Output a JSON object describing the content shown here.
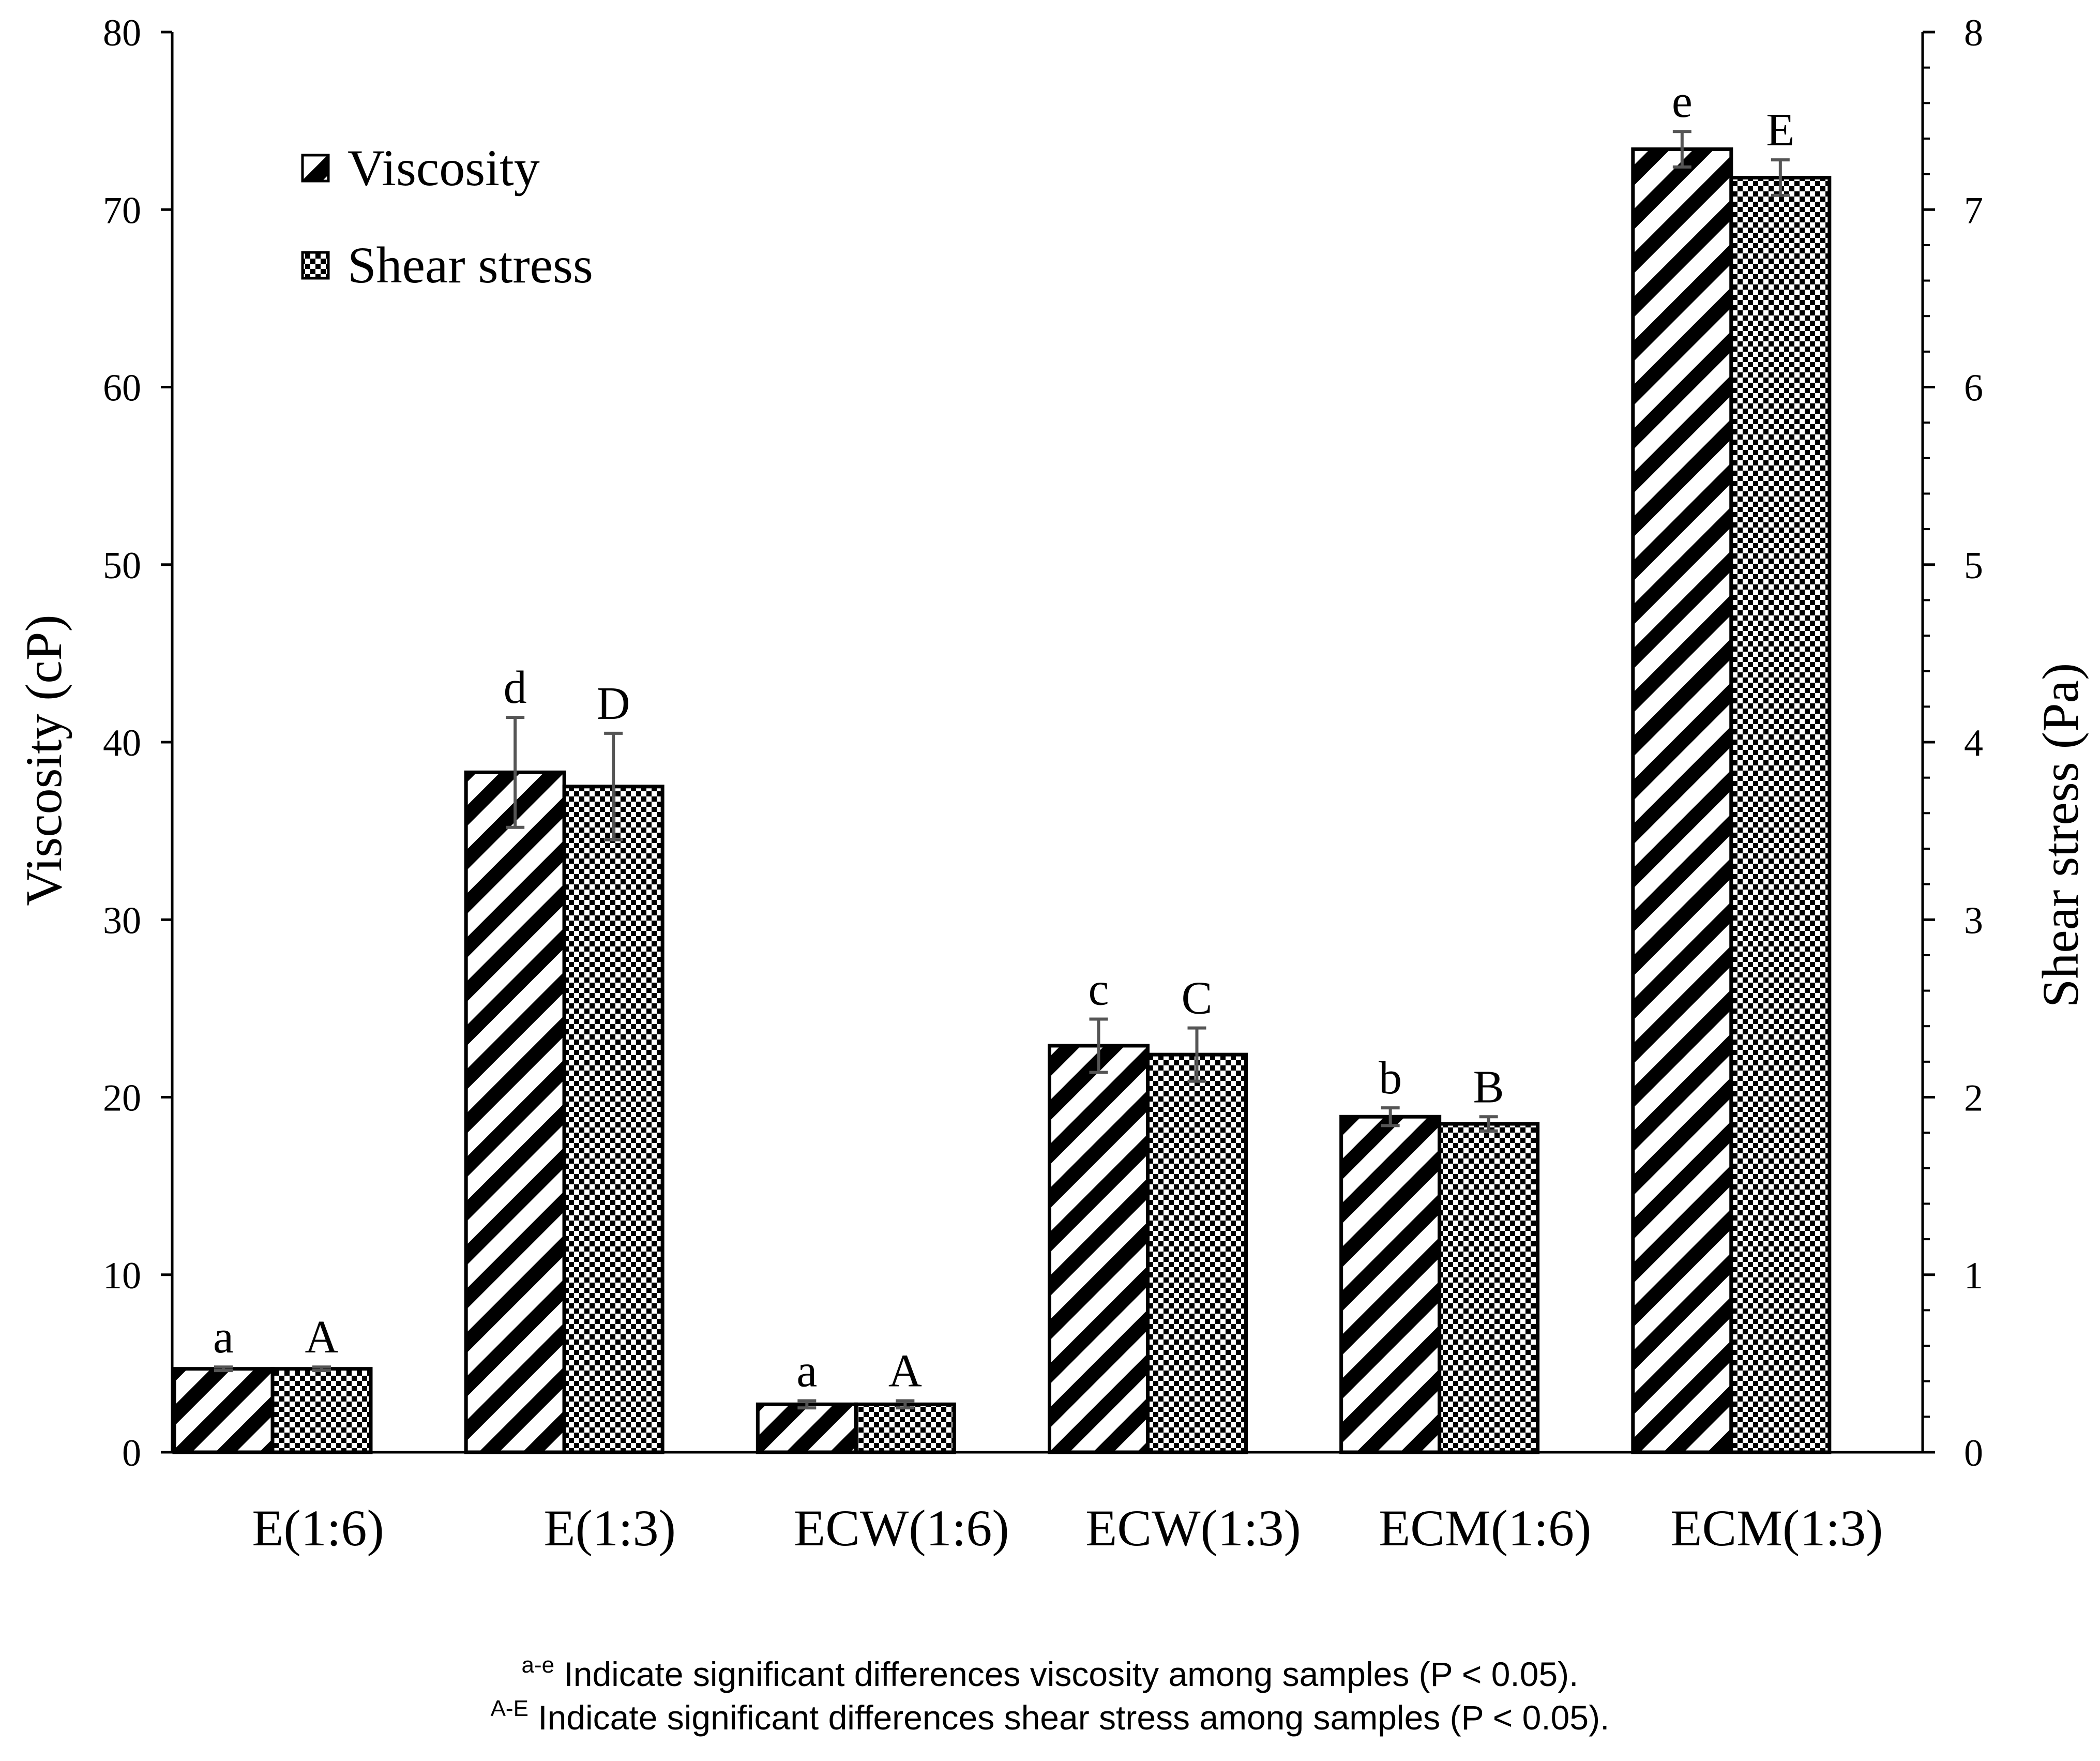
{
  "chart_data": {
    "type": "bar",
    "categories": [
      "E(1:6)",
      "E(1:3)",
      "ECW(1:6)",
      "ECW(1:3)",
      "ECM(1:6)",
      "ECM(1:3)"
    ],
    "series": [
      {
        "name": "Viscosity",
        "axis": "left",
        "pattern": "diagonal-stripes",
        "values": [
          4.7,
          38.3,
          2.7,
          22.9,
          18.9,
          73.4
        ],
        "errors": [
          0.1,
          3.1,
          0.2,
          1.5,
          0.5,
          1.0
        ],
        "significance": [
          "a",
          "d",
          "a",
          "c",
          "b",
          "e"
        ]
      },
      {
        "name": "Shear stress",
        "axis": "right",
        "pattern": "checkerboard",
        "values": [
          0.47,
          3.75,
          0.27,
          2.24,
          1.85,
          7.18
        ],
        "errors": [
          0.01,
          0.3,
          0.02,
          0.15,
          0.04,
          0.1
        ],
        "significance": [
          "A",
          "D",
          "A",
          "C",
          "B",
          "E"
        ]
      }
    ],
    "title": "",
    "xlabel": "",
    "ylabel": "Viscosity (cP)",
    "y2label": "Shear stress (Pa)",
    "ylim": [
      0,
      80
    ],
    "y2lim": [
      0,
      8
    ],
    "yticks": [
      "0",
      "10",
      "20",
      "30",
      "40",
      "50",
      "60",
      "70",
      "80"
    ],
    "y2ticks": [
      "0",
      "1",
      "2",
      "3",
      "4",
      "5",
      "6",
      "7",
      "8"
    ],
    "legend_position": "top-left",
    "grid": false
  },
  "footnotes": {
    "viscosity": {
      "superscript": "a-e",
      "text": " Indicate significant differences viscosity among samples (P < 0.05)."
    },
    "shear_stress": {
      "superscript": "A-E",
      "text": " Indicate significant differences shear stress among samples (P < 0.05)."
    }
  },
  "colors": {
    "ink": "#000000",
    "error_bar": "#555555",
    "background": "#ffffff"
  }
}
